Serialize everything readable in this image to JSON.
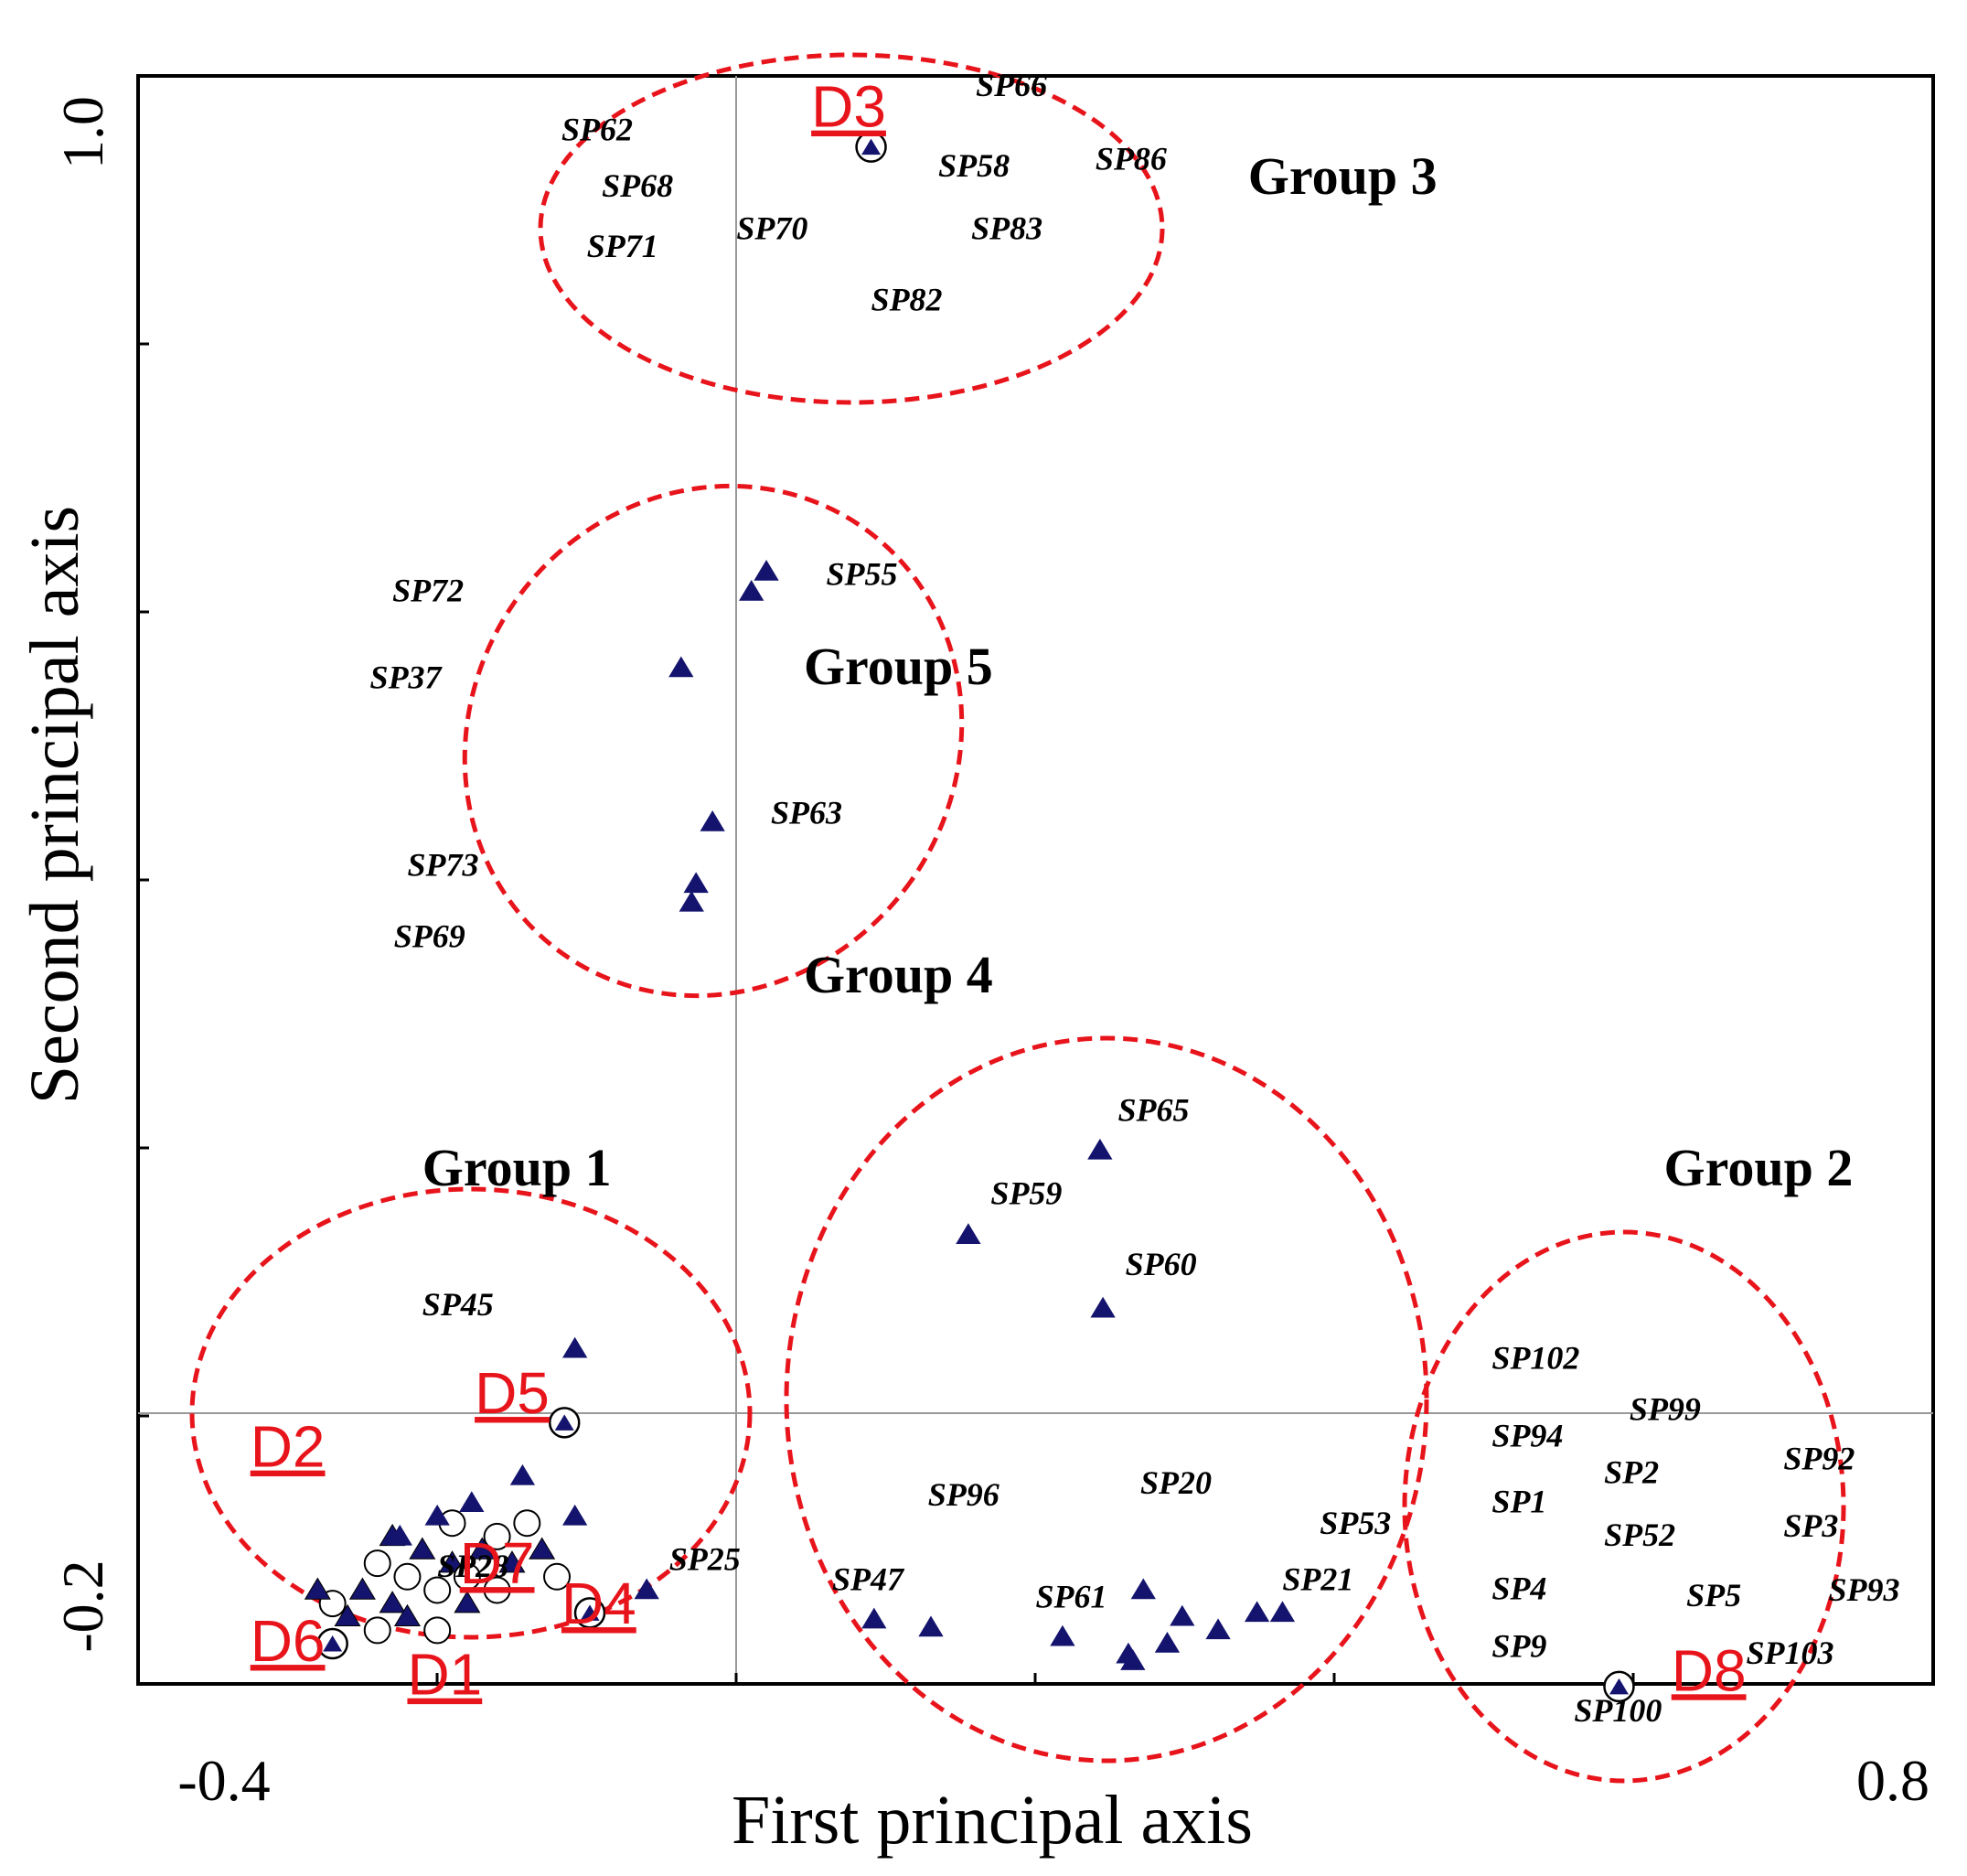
{
  "chart_data": {
    "type": "scatter",
    "title": "",
    "xlabel": "First principal axis",
    "ylabel": "Second principal axis",
    "xlim": [
      -0.4,
      0.8
    ],
    "ylim": [
      -0.2,
      1.0
    ],
    "x_tick_labels": [
      "-0.4",
      "0.8"
    ],
    "y_tick_labels": [
      "-0.2",
      "1.0"
    ],
    "grid": false,
    "reference_lines": {
      "x": 0.0,
      "y": 0.0
    },
    "colors": {
      "point": "#14146e",
      "ellipse": "#e8141b",
      "d_label": "#e8141b",
      "circle": "#000000"
    },
    "groups": [
      {
        "name": "Group 1"
      },
      {
        "name": "Group 2"
      },
      {
        "name": "Group 3"
      },
      {
        "name": "Group 4"
      },
      {
        "name": "Group 5"
      }
    ],
    "triangle_points": [
      {
        "x": 0.02,
        "y": 0.63
      },
      {
        "x": 0.01,
        "y": 0.615
      },
      {
        "x": -0.037,
        "y": 0.558
      },
      {
        "x": -0.016,
        "y": 0.443
      },
      {
        "x": -0.027,
        "y": 0.397
      },
      {
        "x": -0.03,
        "y": 0.383
      },
      {
        "x": 0.243,
        "y": 0.198
      },
      {
        "x": 0.155,
        "y": 0.135
      },
      {
        "x": 0.245,
        "y": 0.08
      },
      {
        "x": -0.108,
        "y": 0.05
      },
      {
        "x": -0.143,
        "y": -0.045
      },
      {
        "x": -0.177,
        "y": -0.065
      },
      {
        "x": -0.108,
        "y": -0.075
      },
      {
        "x": -0.2,
        "y": -0.075
      },
      {
        "x": -0.225,
        "y": -0.09
      },
      {
        "x": -0.06,
        "y": -0.13
      },
      {
        "x": 0.092,
        "y": -0.152
      },
      {
        "x": 0.13,
        "y": -0.158
      },
      {
        "x": 0.218,
        "y": -0.165
      },
      {
        "x": 0.272,
        "y": -0.13
      },
      {
        "x": 0.298,
        "y": -0.15
      },
      {
        "x": 0.322,
        "y": -0.16
      },
      {
        "x": 0.348,
        "y": -0.147
      },
      {
        "x": 0.365,
        "y": -0.147
      },
      {
        "x": 0.288,
        "y": -0.17
      },
      {
        "x": 0.262,
        "y": -0.178
      },
      {
        "x": 0.265,
        "y": -0.183
      }
    ],
    "circled_points": [
      {
        "x": 0.09,
        "y": 0.947
      },
      {
        "x": -0.115,
        "y": -0.005
      },
      {
        "x": -0.098,
        "y": -0.147
      },
      {
        "x": 0.59,
        "y": -0.202
      },
      {
        "x": -0.27,
        "y": -0.17
      }
    ],
    "cluster_points": [
      {
        "x": -0.25,
        "y": -0.13
      },
      {
        "x": -0.24,
        "y": -0.11
      },
      {
        "x": -0.23,
        "y": -0.14
      },
      {
        "x": -0.22,
        "y": -0.12
      },
      {
        "x": -0.21,
        "y": -0.1
      },
      {
        "x": -0.2,
        "y": -0.13
      },
      {
        "x": -0.19,
        "y": -0.11
      },
      {
        "x": -0.18,
        "y": -0.12
      },
      {
        "x": -0.17,
        "y": -0.1
      },
      {
        "x": -0.16,
        "y": -0.09
      },
      {
        "x": -0.15,
        "y": -0.11
      },
      {
        "x": -0.14,
        "y": -0.08
      },
      {
        "x": -0.26,
        "y": -0.15
      },
      {
        "x": -0.27,
        "y": -0.14
      },
      {
        "x": -0.28,
        "y": -0.13
      },
      {
        "x": -0.24,
        "y": -0.16
      },
      {
        "x": -0.22,
        "y": -0.15
      },
      {
        "x": -0.2,
        "y": -0.16
      },
      {
        "x": -0.18,
        "y": -0.14
      },
      {
        "x": -0.16,
        "y": -0.13
      },
      {
        "x": -0.13,
        "y": -0.1
      },
      {
        "x": -0.12,
        "y": -0.12
      },
      {
        "x": -0.23,
        "y": -0.09
      },
      {
        "x": -0.19,
        "y": -0.08
      }
    ],
    "species_labels": [
      {
        "text": "SP62",
        "x": -0.117,
        "y": 0.952
      },
      {
        "text": "SP66",
        "x": 0.16,
        "y": 0.985
      },
      {
        "text": "SP58",
        "x": 0.135,
        "y": 0.925
      },
      {
        "text": "SP86",
        "x": 0.24,
        "y": 0.93
      },
      {
        "text": "SP68",
        "x": -0.09,
        "y": 0.91
      },
      {
        "text": "SP71",
        "x": -0.1,
        "y": 0.865
      },
      {
        "text": "SP70",
        "x": 0.0,
        "y": 0.878
      },
      {
        "text": "SP83",
        "x": 0.157,
        "y": 0.878
      },
      {
        "text": "SP82",
        "x": 0.09,
        "y": 0.825
      },
      {
        "text": "SP72",
        "x": -0.23,
        "y": 0.608
      },
      {
        "text": "SP55",
        "x": 0.06,
        "y": 0.62
      },
      {
        "text": "SP37",
        "x": -0.245,
        "y": 0.543
      },
      {
        "text": "SP63",
        "x": 0.023,
        "y": 0.442
      },
      {
        "text": "SP73",
        "x": -0.22,
        "y": 0.403
      },
      {
        "text": "SP69",
        "x": -0.229,
        "y": 0.35
      },
      {
        "text": "SP65",
        "x": 0.255,
        "y": 0.22
      },
      {
        "text": "SP59",
        "x": 0.17,
        "y": 0.158
      },
      {
        "text": "SP60",
        "x": 0.26,
        "y": 0.105
      },
      {
        "text": "SP45",
        "x": -0.21,
        "y": 0.075
      },
      {
        "text": "SP96",
        "x": 0.128,
        "y": -0.067
      },
      {
        "text": "SP20",
        "x": 0.27,
        "y": -0.058
      },
      {
        "text": "SP53",
        "x": 0.39,
        "y": -0.088
      },
      {
        "text": "SP47",
        "x": 0.064,
        "y": -0.13
      },
      {
        "text": "SP61",
        "x": 0.2,
        "y": -0.143
      },
      {
        "text": "SP21",
        "x": 0.365,
        "y": -0.13
      },
      {
        "text": "SP25",
        "x": -0.045,
        "y": -0.115
      },
      {
        "text": "SP28",
        "x": -0.2,
        "y": -0.12
      },
      {
        "text": "SP102",
        "x": 0.505,
        "y": 0.035
      },
      {
        "text": "SP99",
        "x": 0.597,
        "y": -0.003
      },
      {
        "text": "SP94",
        "x": 0.505,
        "y": -0.023
      },
      {
        "text": "SP92",
        "x": 0.7,
        "y": -0.04
      },
      {
        "text": "SP2",
        "x": 0.58,
        "y": -0.05
      },
      {
        "text": "SP1",
        "x": 0.505,
        "y": -0.072
      },
      {
        "text": "SP52",
        "x": 0.58,
        "y": -0.097
      },
      {
        "text": "SP3",
        "x": 0.7,
        "y": -0.09
      },
      {
        "text": "SP4",
        "x": 0.505,
        "y": -0.137
      },
      {
        "text": "SP5",
        "x": 0.635,
        "y": -0.142
      },
      {
        "text": "SP93",
        "x": 0.73,
        "y": -0.138
      },
      {
        "text": "SP9",
        "x": 0.505,
        "y": -0.18
      },
      {
        "text": "SP103",
        "x": 0.675,
        "y": -0.185
      },
      {
        "text": "SP100",
        "x": 0.56,
        "y": -0.228
      }
    ],
    "d_labels": [
      {
        "text": "D3",
        "x": 0.05,
        "y": 0.962
      },
      {
        "text": "D5",
        "x": -0.175,
        "y": 0.002
      },
      {
        "text": "D2",
        "x": -0.325,
        "y": -0.038
      },
      {
        "text": "D7",
        "x": -0.185,
        "y": -0.125
      },
      {
        "text": "D4",
        "x": -0.117,
        "y": -0.155
      },
      {
        "text": "D6",
        "x": -0.325,
        "y": -0.183
      },
      {
        "text": "D1",
        "x": -0.22,
        "y": -0.208
      },
      {
        "text": "D8",
        "x": 0.625,
        "y": -0.205
      }
    ],
    "annotations": [
      {
        "text": "Group 3",
        "x": 0.342,
        "y": 0.912
      },
      {
        "text": "Group 5",
        "x": 0.045,
        "y": 0.546
      },
      {
        "text": "Group 4",
        "x": 0.045,
        "y": 0.316
      },
      {
        "text": "Group 1",
        "x": -0.21,
        "y": 0.172
      },
      {
        "text": "Group 2",
        "x": 0.62,
        "y": 0.172
      }
    ]
  }
}
